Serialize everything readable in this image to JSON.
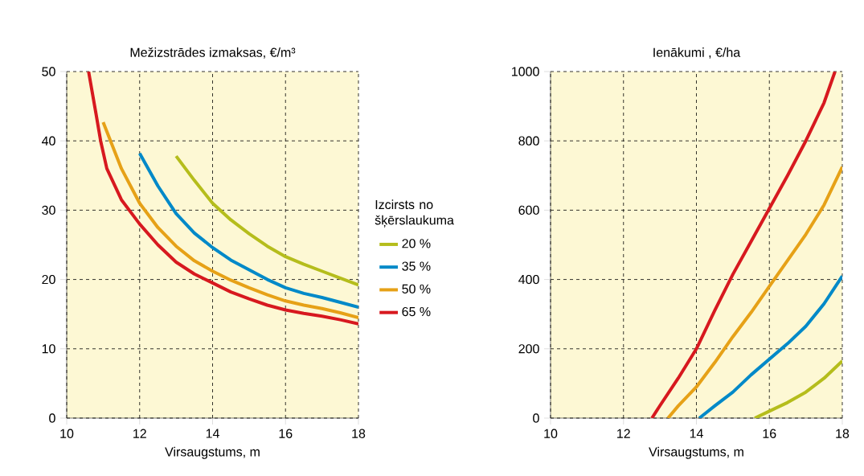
{
  "chart_data": [
    {
      "type": "line",
      "title": "Mežizstrādes izmaksas, €/m³",
      "xlabel": "Virsaugstums, m",
      "legend_title": "Izcirsts no šķērslaukuma",
      "legend": "right",
      "grid": true,
      "marker": "none",
      "line_style": "solid",
      "xlim": [
        10,
        18
      ],
      "xticks": [
        10,
        12,
        14,
        16,
        18
      ],
      "ylim": [
        0,
        50
      ],
      "yticks": [
        0,
        10,
        20,
        30,
        40,
        50
      ],
      "series": [
        {
          "name": "20 %",
          "color": "#b5bd1c",
          "x": [
            13,
            13.5,
            14,
            14.5,
            15,
            15.5,
            16,
            16.5,
            17,
            17.5,
            18
          ],
          "values": [
            37.8,
            34.3,
            31,
            28.6,
            26.6,
            24.8,
            23.3,
            22.2,
            21.2,
            20.2,
            19.2
          ]
        },
        {
          "name": "35 %",
          "color": "#0089c8",
          "x": [
            12,
            12.5,
            13,
            13.5,
            14,
            14.5,
            15,
            15.5,
            16,
            16.5,
            17,
            17.5,
            18
          ],
          "values": [
            38.2,
            33.5,
            29.5,
            26.7,
            24.6,
            22.8,
            21.4,
            20,
            18.8,
            18,
            17.4,
            16.7,
            16
          ]
        },
        {
          "name": "50 %",
          "color": "#e6a117",
          "x": [
            11,
            11.5,
            12,
            12.5,
            13,
            13.5,
            14,
            14.5,
            15,
            15.5,
            16,
            16.5,
            17,
            17.5,
            18
          ],
          "values": [
            42.7,
            36,
            31,
            27.5,
            24.8,
            22.7,
            21.2,
            19.9,
            18.8,
            17.8,
            16.9,
            16.3,
            15.8,
            15.2,
            14.5
          ]
        },
        {
          "name": "65 %",
          "color": "#d7191f",
          "x": [
            10.6,
            10.8,
            10.93,
            11.1,
            11.5,
            12,
            12.5,
            13,
            13.5,
            14,
            14.5,
            15,
            15.5,
            16,
            16.5,
            17,
            17.5,
            18
          ],
          "values": [
            50,
            44,
            40,
            36,
            31.5,
            28,
            25,
            22.5,
            20.8,
            19.5,
            18.2,
            17.2,
            16.3,
            15.6,
            15.1,
            14.7,
            14.2,
            13.6
          ]
        }
      ]
    },
    {
      "type": "line",
      "title": "Ienākumi , €/ha",
      "xlabel": "Virsaugstums, m",
      "grid": true,
      "marker": "none",
      "line_style": "solid",
      "xlim": [
        10,
        18
      ],
      "xticks": [
        10,
        12,
        14,
        16,
        18
      ],
      "ylim": [
        0,
        1000
      ],
      "yticks": [
        0,
        200,
        400,
        600,
        800,
        1000
      ],
      "series": [
        {
          "color": "#b5bd1c",
          "x": [
            15.6,
            16,
            16.5,
            17,
            17.5,
            18
          ],
          "values": [
            0,
            20,
            45,
            75,
            115,
            165
          ]
        },
        {
          "color": "#0089c8",
          "x": [
            14.08,
            14.5,
            15,
            15.5,
            16,
            16.5,
            17,
            17.5,
            18
          ],
          "values": [
            0,
            35,
            75,
            125,
            170,
            215,
            265,
            330,
            410
          ]
        },
        {
          "color": "#e6a117",
          "x": [
            13.22,
            13.5,
            14,
            14.5,
            15,
            15.5,
            16,
            16.5,
            17,
            17.5,
            18
          ],
          "values": [
            0,
            35,
            90,
            160,
            235,
            305,
            380,
            455,
            530,
            615,
            725
          ]
        },
        {
          "color": "#d7191f",
          "x": [
            12.78,
            13,
            13.5,
            14,
            14.5,
            15,
            15.5,
            16,
            16.5,
            17,
            17.5,
            17.8
          ],
          "values": [
            0,
            36,
            115,
            200,
            310,
            415,
            510,
            605,
            700,
            800,
            910,
            1000
          ]
        }
      ]
    }
  ]
}
